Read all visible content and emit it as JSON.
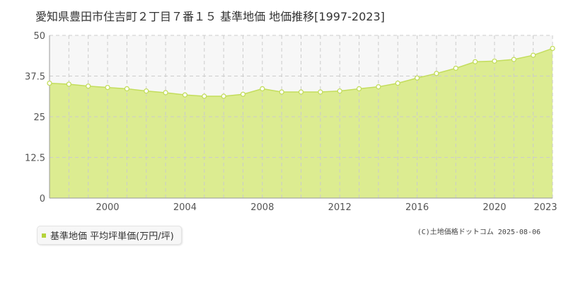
{
  "title": "愛知県豊田市住吉町２丁目７番１５ 基準地価 地価推移[1997-2023]",
  "credit": "(C)土地価格ドットコム 2025-08-06",
  "colors": {
    "area_fill": "#dcec91",
    "line": "#c3dd5c",
    "point_fill": "#ffffff",
    "grid": "#cccccc",
    "above_band": "#f7f7f7",
    "legend_marker": "#b5d33b"
  },
  "chart_data": {
    "type": "area",
    "x": [
      1997,
      1998,
      1999,
      2000,
      2001,
      2002,
      2003,
      2004,
      2005,
      2006,
      2007,
      2008,
      2009,
      2010,
      2011,
      2012,
      2013,
      2014,
      2015,
      2016,
      2017,
      2018,
      2019,
      2020,
      2021,
      2022,
      2023
    ],
    "series": [
      {
        "name": "基準地価 平均坪単価(万円/坪)",
        "values": [
          35.3,
          35.0,
          34.4,
          34.0,
          33.6,
          32.9,
          32.4,
          31.7,
          31.3,
          31.3,
          31.9,
          33.6,
          32.6,
          32.6,
          32.6,
          32.9,
          33.6,
          34.2,
          35.3,
          36.9,
          38.3,
          39.9,
          41.9,
          42.1,
          42.6,
          43.9,
          46.0
        ]
      }
    ],
    "xticks": [
      "2000",
      "2004",
      "2008",
      "2012",
      "2016",
      "2020",
      "2023"
    ],
    "xtick_values": [
      2000,
      2004,
      2008,
      2012,
      2016,
      2020,
      2023
    ],
    "yticks": [
      "0",
      "12.5",
      "25",
      "37.5",
      "50"
    ],
    "ytick_values": [
      0,
      12.5,
      25,
      37.5,
      50
    ],
    "xlim": [
      1997,
      2023
    ],
    "ylim": [
      0,
      50
    ],
    "grid": true,
    "legend": "bottom-left"
  }
}
